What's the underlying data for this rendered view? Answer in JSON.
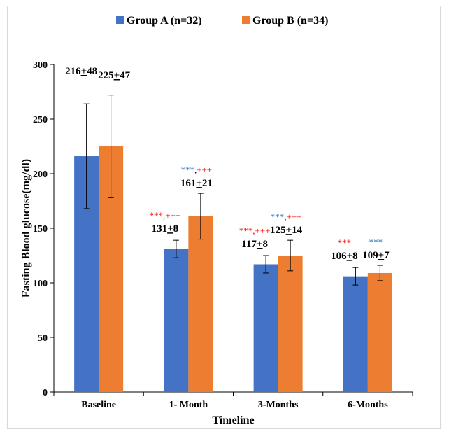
{
  "chart_data": {
    "type": "bar",
    "title": "",
    "xlabel": "Timeline",
    "ylabel": "Fasting Blood glucose(mg/dl)",
    "ylim": [
      0,
      300
    ],
    "yticks": [
      0,
      50,
      100,
      150,
      200,
      250,
      300
    ],
    "grid": false,
    "legend_position": "top",
    "categories": [
      "Baseline",
      "1- Month",
      "3-Months",
      "6-Months"
    ],
    "series": [
      {
        "name": "Group A (n=32)",
        "color": "#4472C4",
        "values": [
          216,
          131,
          117,
          106
        ],
        "errors": [
          48,
          8,
          8,
          8
        ],
        "labels": [
          "216+48",
          "131+8",
          "117+8",
          "106+8"
        ],
        "significance": [
          [],
          [
            {
              "text": "***",
              "color": "#FF0000"
            },
            {
              "text": ",",
              "color": "#FF0000"
            },
            {
              "text": "+++",
              "color": "#FF0000"
            }
          ],
          [
            {
              "text": "***",
              "color": "#FF0000"
            },
            {
              "text": ",",
              "color": "#FF0000"
            },
            {
              "text": "+++",
              "color": "#FF0000"
            }
          ],
          [
            {
              "text": "***",
              "color": "#FF0000"
            }
          ]
        ]
      },
      {
        "name": "Group B (n=34)",
        "color": "#ED7D31",
        "values": [
          225,
          161,
          125,
          109
        ],
        "errors": [
          47,
          21,
          14,
          7
        ],
        "labels": [
          "225+47",
          "161+21",
          "125+14",
          "109+7"
        ],
        "significance": [
          [],
          [
            {
              "text": "***",
              "color": "#2E75B6"
            },
            {
              "text": ",",
              "color": "#000000"
            },
            {
              "text": "+++",
              "color": "#FF0000"
            }
          ],
          [
            {
              "text": "***",
              "color": "#2E75B6"
            },
            {
              "text": ",",
              "color": "#000000"
            },
            {
              "text": "+++",
              "color": "#FF0000"
            }
          ],
          [
            {
              "text": "***",
              "color": "#2E75B6"
            }
          ]
        ]
      }
    ]
  }
}
